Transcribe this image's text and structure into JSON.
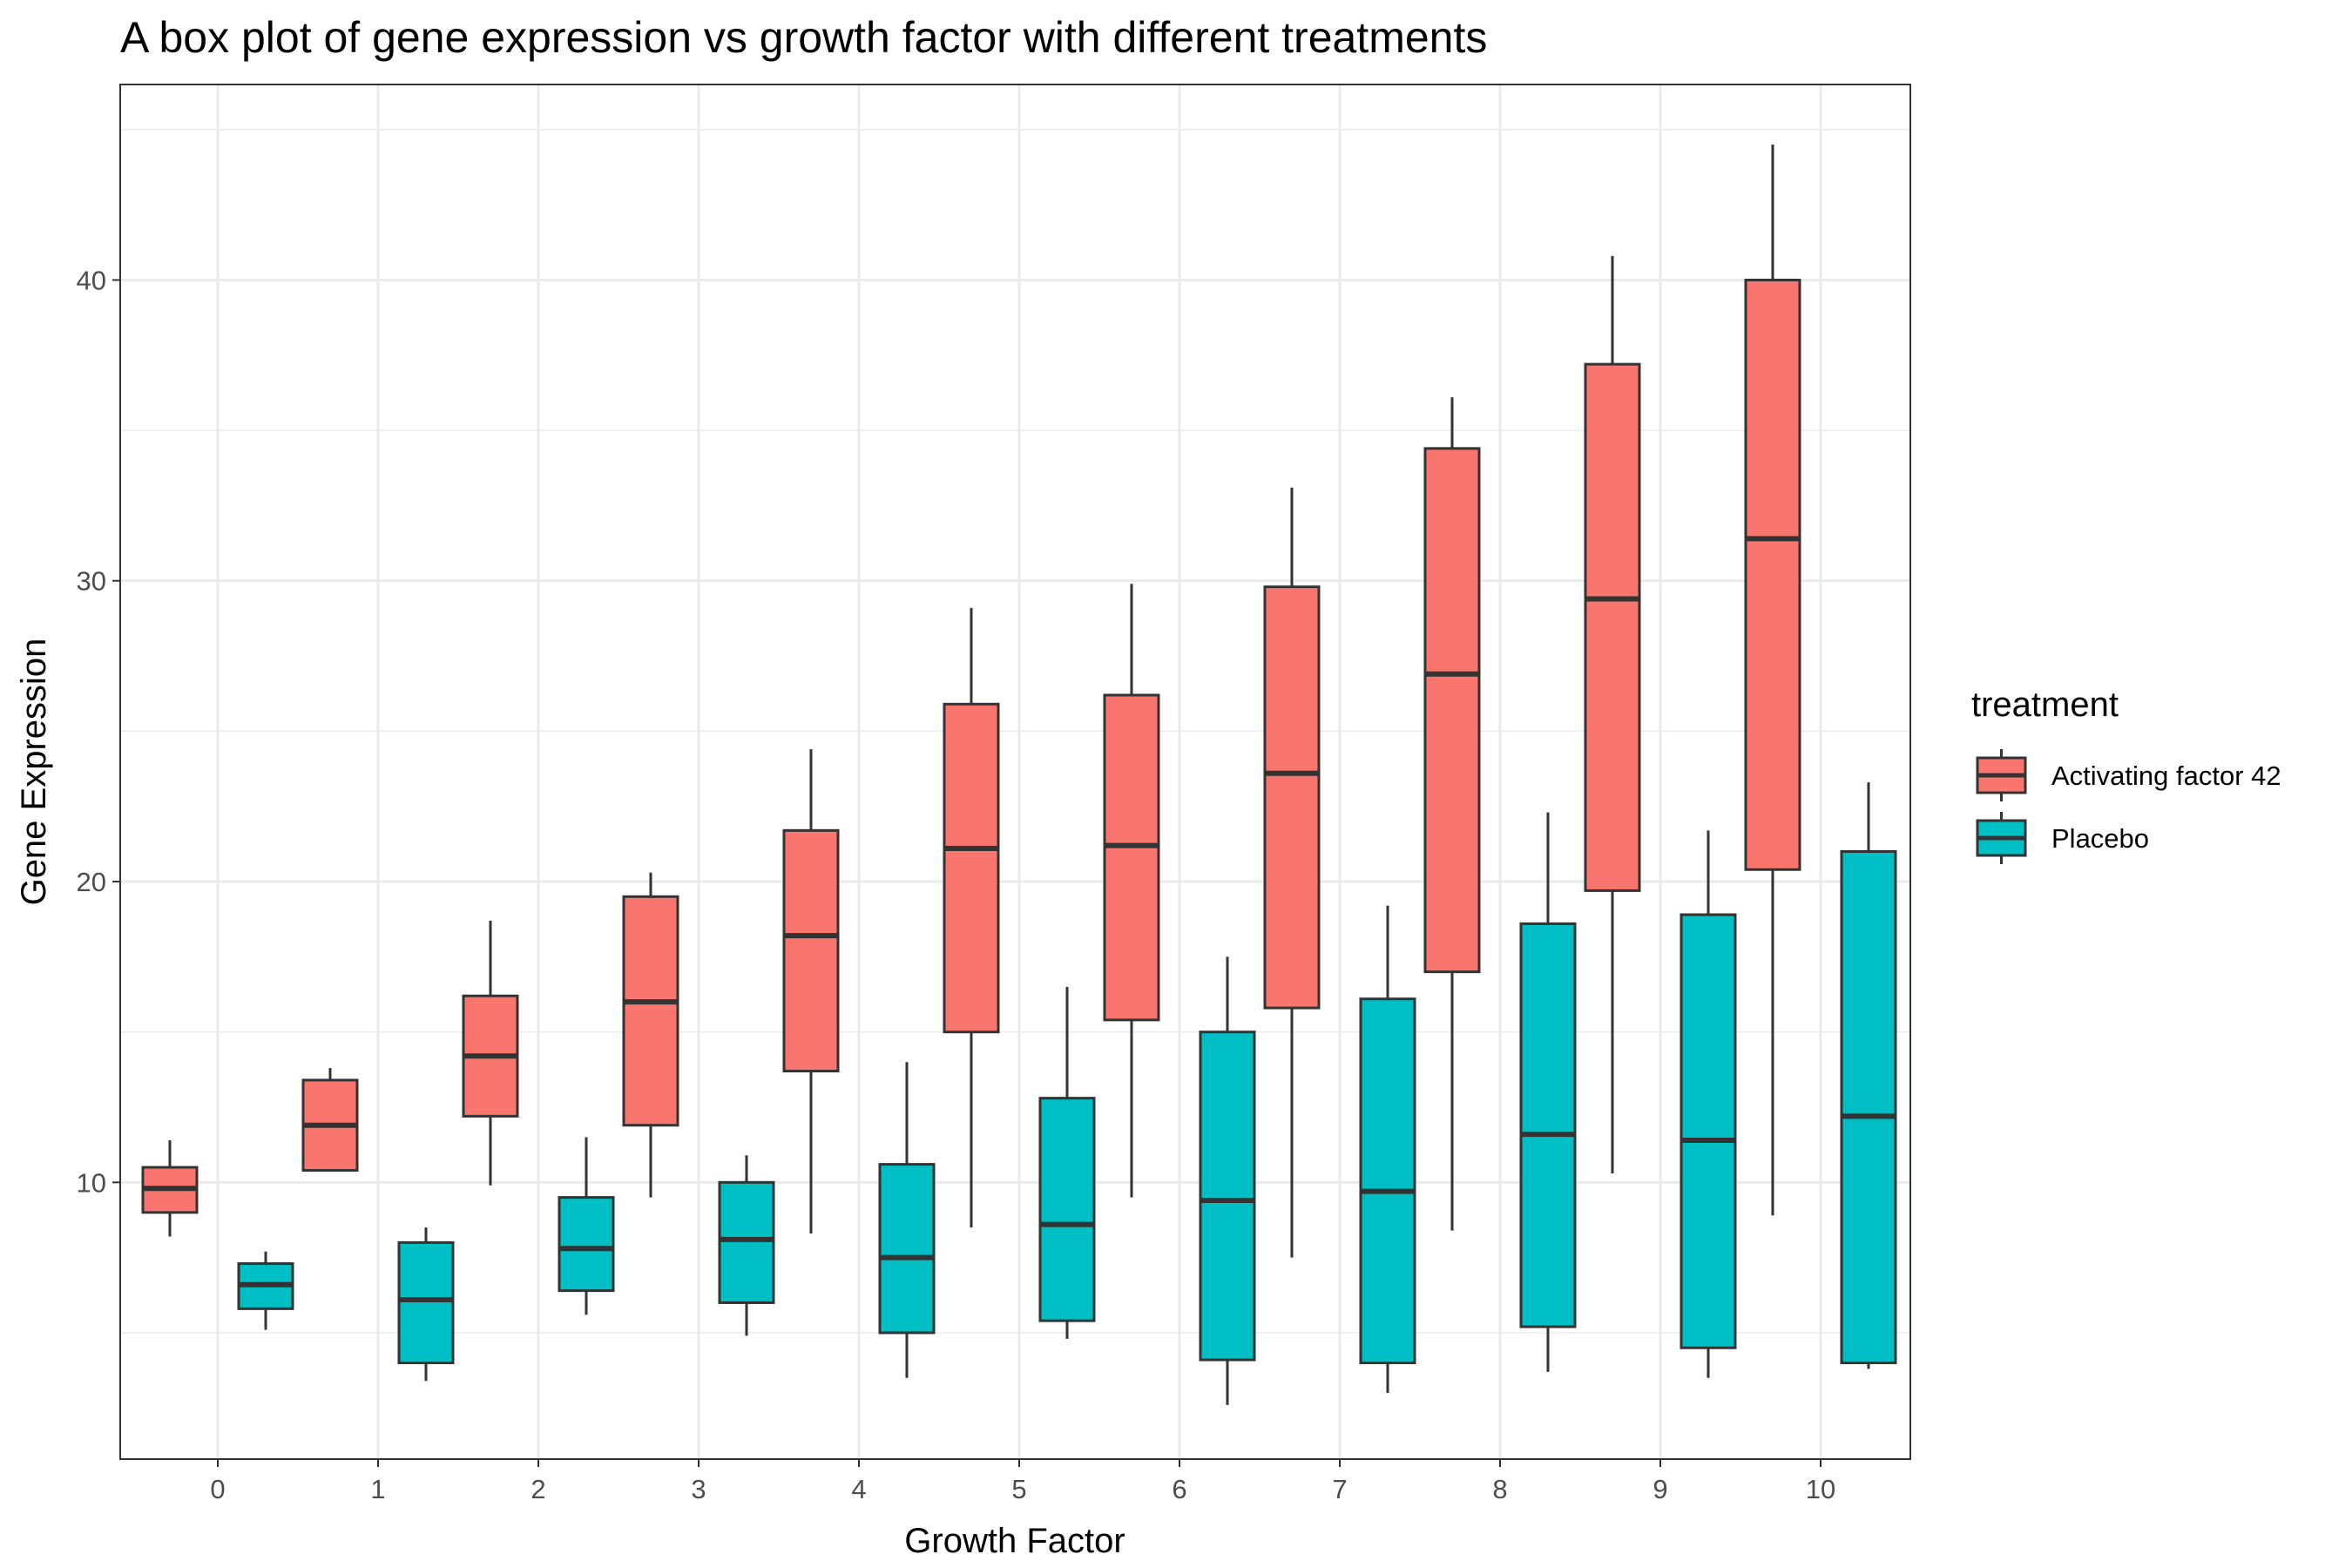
{
  "chart_data": {
    "type": "box",
    "title": "A box plot of gene expression vs growth factor with different treatments",
    "xlabel": "Growth Factor",
    "ylabel": "Gene Expression",
    "categories": [
      "0",
      "1",
      "2",
      "3",
      "4",
      "5",
      "6",
      "7",
      "8",
      "9",
      "10"
    ],
    "y_ticks": [
      10,
      20,
      30,
      40
    ],
    "ylim": [
      0.8,
      46.5
    ],
    "grid": true,
    "legend": {
      "title": "treatment",
      "position": "right"
    },
    "series": [
      {
        "name": "Activating factor 42",
        "color": "#F8766D",
        "boxes": [
          {
            "min": 8.2,
            "q1": 9.0,
            "median": 9.8,
            "q3": 10.5,
            "max": 11.4
          },
          {
            "min": 10.4,
            "q1": 10.4,
            "median": 11.9,
            "q3": 13.4,
            "max": 13.8
          },
          {
            "min": 9.9,
            "q1": 12.2,
            "median": 14.2,
            "q3": 16.2,
            "max": 18.7
          },
          {
            "min": 9.5,
            "q1": 11.9,
            "median": 16.0,
            "q3": 19.5,
            "max": 20.3
          },
          {
            "min": 8.3,
            "q1": 13.7,
            "median": 18.2,
            "q3": 21.7,
            "max": 24.4
          },
          {
            "min": 8.5,
            "q1": 15.0,
            "median": 21.1,
            "q3": 25.9,
            "max": 29.1
          },
          {
            "min": 9.5,
            "q1": 15.4,
            "median": 21.2,
            "q3": 26.2,
            "max": 29.9
          },
          {
            "min": 7.5,
            "q1": 15.8,
            "median": 23.6,
            "q3": 29.8,
            "max": 33.1
          },
          {
            "min": 8.4,
            "q1": 17.0,
            "median": 26.9,
            "q3": 34.4,
            "max": 36.1
          },
          {
            "min": 10.3,
            "q1": 19.7,
            "median": 29.4,
            "q3": 37.2,
            "max": 40.8
          },
          {
            "min": 8.9,
            "q1": 20.4,
            "median": 31.4,
            "q3": 40.0,
            "max": 44.5
          }
        ]
      },
      {
        "name": "Placebo",
        "color": "#00BFC4",
        "boxes": [
          {
            "min": 5.1,
            "q1": 5.8,
            "median": 6.6,
            "q3": 7.3,
            "max": 7.7
          },
          {
            "min": 3.4,
            "q1": 4.0,
            "median": 6.1,
            "q3": 8.0,
            "max": 8.5
          },
          {
            "min": 5.6,
            "q1": 6.4,
            "median": 7.8,
            "q3": 9.5,
            "max": 11.5
          },
          {
            "min": 4.9,
            "q1": 6.0,
            "median": 8.1,
            "q3": 10.0,
            "max": 10.9
          },
          {
            "min": 3.5,
            "q1": 5.0,
            "median": 7.5,
            "q3": 10.6,
            "max": 14.0
          },
          {
            "min": 4.8,
            "q1": 5.4,
            "median": 8.6,
            "q3": 12.8,
            "max": 16.5
          },
          {
            "min": 2.6,
            "q1": 4.1,
            "median": 9.4,
            "q3": 15.0,
            "max": 17.5
          },
          {
            "min": 3.0,
            "q1": 4.0,
            "median": 9.7,
            "q3": 16.1,
            "max": 19.2
          },
          {
            "min": 3.7,
            "q1": 5.2,
            "median": 11.6,
            "q3": 18.6,
            "max": 22.3
          },
          {
            "min": 3.5,
            "q1": 4.5,
            "median": 11.4,
            "q3": 18.9,
            "max": 21.7
          },
          {
            "min": 3.8,
            "q1": 4.0,
            "median": 12.2,
            "q3": 21.0,
            "max": 23.3
          }
        ]
      }
    ]
  }
}
